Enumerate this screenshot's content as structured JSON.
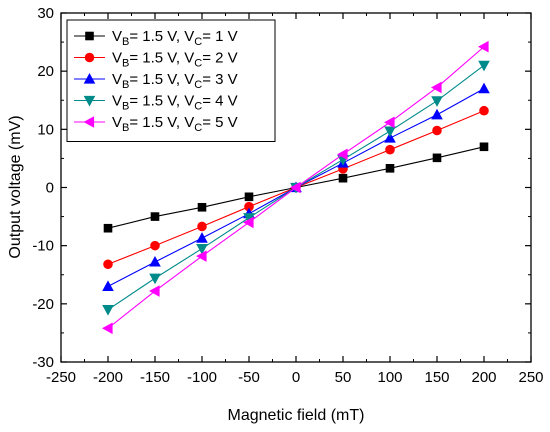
{
  "chart_data": {
    "type": "line",
    "xlabel": "Magnetic field (mT)",
    "ylabel": "Output voltage (mV)",
    "xlim": [
      -250,
      250
    ],
    "ylim": [
      -30,
      30
    ],
    "xticks": [
      "-250",
      "-200",
      "-150",
      "-100",
      "-50",
      "0",
      "50",
      "100",
      "150",
      "200",
      "250"
    ],
    "yticks": [
      "-30",
      "-20",
      "-10",
      "0",
      "10",
      "20",
      "30"
    ],
    "grid": false,
    "legend_position": "top-left",
    "x": [
      -200,
      -150,
      -100,
      -50,
      0,
      50,
      100,
      150,
      200
    ],
    "series": [
      {
        "legend": {
          "pre": "V",
          "sub1": "B",
          "mid": "= 1.5 V, V",
          "sub2": "C",
          "post": "= 1 V"
        },
        "color": "#000000",
        "marker": "square",
        "values": [
          -7.0,
          -5.0,
          -3.4,
          -1.6,
          0,
          1.6,
          3.3,
          5.1,
          7.0
        ]
      },
      {
        "legend": {
          "pre": "V",
          "sub1": "B",
          "mid": "= 1.5 V, V",
          "sub2": "C",
          "post": "= 2 V"
        },
        "color": "#ff0000",
        "marker": "circle",
        "values": [
          -13.2,
          -10.0,
          -6.7,
          -3.3,
          0,
          3.2,
          6.5,
          9.8,
          13.2
        ]
      },
      {
        "legend": {
          "pre": "V",
          "sub1": "B",
          "mid": "= 1.5 V, V",
          "sub2": "C",
          "post": "= 3 V"
        },
        "color": "#0000ff",
        "marker": "triangle-up",
        "values": [
          -17.0,
          -12.8,
          -8.7,
          -4.5,
          0,
          4.2,
          8.5,
          12.5,
          17.0
        ]
      },
      {
        "legend": {
          "pre": "V",
          "sub1": "B",
          "mid": "= 1.5 V, V",
          "sub2": "C",
          "post": "= 4 V"
        },
        "color": "#008b8b",
        "marker": "triangle-down",
        "values": [
          -21.0,
          -15.6,
          -10.5,
          -5.2,
          0,
          4.8,
          9.7,
          14.9,
          21.0
        ]
      },
      {
        "legend": {
          "pre": "V",
          "sub1": "B",
          "mid": "= 1.5 V, V",
          "sub2": "C",
          "post": "= 5 V"
        },
        "color": "#ff00ff",
        "marker": "triangle-left",
        "values": [
          -24.2,
          -17.8,
          -11.8,
          -6.0,
          0,
          5.7,
          11.2,
          17.2,
          24.2
        ]
      }
    ]
  }
}
